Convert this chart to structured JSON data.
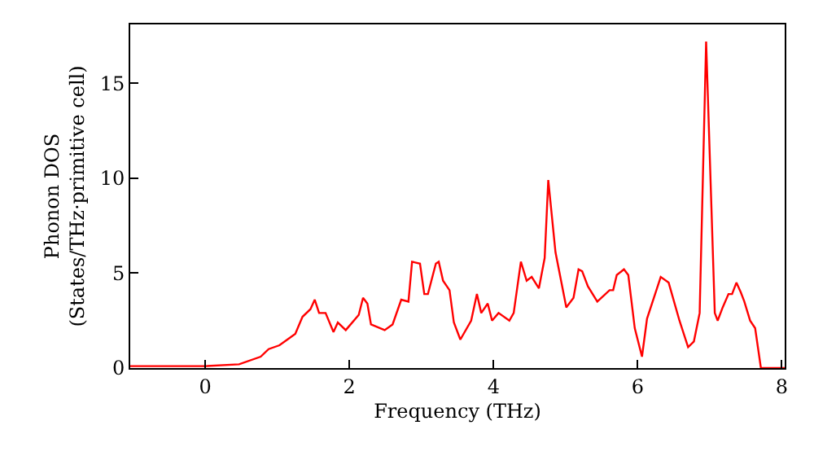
{
  "chart_data": {
    "type": "line",
    "xlabel": "Frequency (THz)",
    "ylabel": "Phonon DOS\n(States/THz·primitive cell)",
    "x": [
      -1.04,
      -0.51,
      0,
      0.47,
      0.77,
      0.88,
      1.03,
      1.14,
      1.25,
      1.35,
      1.46,
      1.52,
      1.58,
      1.67,
      1.78,
      1.84,
      1.95,
      2.13,
      2.19,
      2.25,
      2.3,
      2.49,
      2.6,
      2.72,
      2.82,
      2.87,
      2.98,
      3.04,
      3.09,
      3.2,
      3.24,
      3.3,
      3.39,
      3.45,
      3.54,
      3.69,
      3.77,
      3.83,
      3.92,
      3.98,
      4.07,
      4.22,
      4.28,
      4.38,
      4.46,
      4.53,
      4.63,
      4.71,
      4.76,
      4.86,
      5.01,
      5.11,
      5.18,
      5.23,
      5.31,
      5.44,
      5.61,
      5.66,
      5.71,
      5.81,
      5.87,
      5.96,
      6.06,
      6.13,
      6.32,
      6.43,
      6.58,
      6.7,
      6.78,
      6.86,
      6.95,
      7.07,
      7.11,
      7.18,
      7.26,
      7.31,
      7.37,
      7.43,
      7.48,
      7.56,
      7.63,
      7.71,
      8.04
    ],
    "series": [
      {
        "color": "#ff0000",
        "values": [
          0.1,
          0.1,
          0.1,
          0.2,
          0.6,
          1.0,
          1.2,
          1.5,
          1.8,
          2.7,
          3.1,
          3.6,
          2.9,
          2.9,
          1.9,
          2.4,
          2.0,
          2.8,
          3.7,
          3.4,
          2.3,
          2.0,
          2.3,
          3.6,
          3.5,
          5.6,
          5.5,
          3.9,
          3.9,
          5.5,
          5.6,
          4.6,
          4.1,
          2.4,
          1.5,
          2.5,
          3.9,
          2.9,
          3.4,
          2.5,
          2.9,
          2.5,
          2.9,
          5.6,
          4.6,
          4.8,
          4.2,
          5.8,
          9.9,
          6.1,
          3.2,
          3.7,
          5.2,
          5.1,
          4.3,
          3.5,
          4.1,
          4.1,
          4.9,
          5.2,
          4.9,
          2.1,
          0.6,
          2.6,
          4.8,
          4.5,
          2.5,
          1.1,
          1.4,
          2.9,
          17.2,
          2.9,
          2.5,
          3.2,
          3.9,
          3.9,
          4.5,
          4.0,
          3.5,
          2.5,
          2.1,
          0,
          0
        ]
      }
    ],
    "xlim": [
      -1.04,
      8.04
    ],
    "ylim": [
      0,
      18.1
    ],
    "xticks": [
      0,
      2,
      4,
      6,
      8
    ],
    "yticks": [
      0,
      5,
      10,
      15
    ],
    "legend": false
  }
}
